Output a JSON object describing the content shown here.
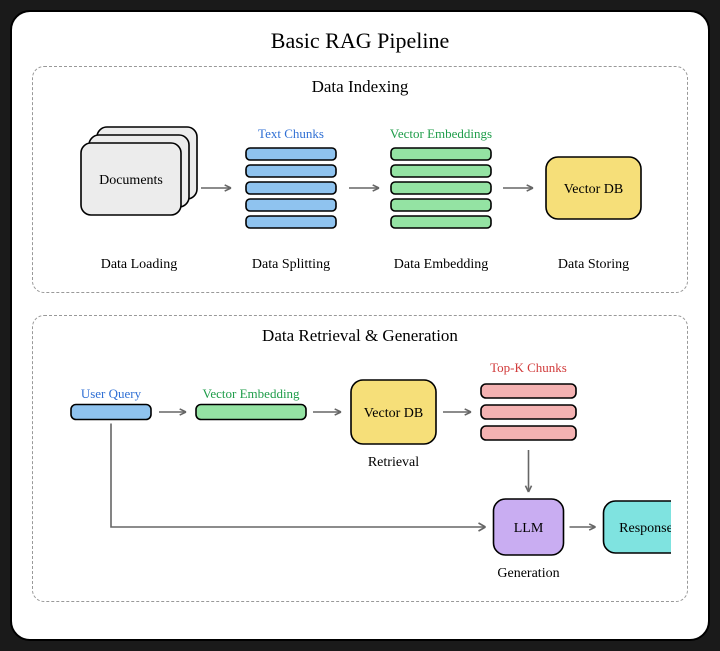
{
  "title": "Basic RAG Pipeline",
  "indexing": {
    "section_title": "Data Indexing",
    "documents": {
      "label": "Documents",
      "stage": "Data Loading",
      "fill": "#ececec",
      "stroke": "#000000",
      "count": 3
    },
    "chunks": {
      "header": "Text Chunks",
      "header_color": "#2f6fd4",
      "stage": "Data Splitting",
      "fill": "#8fc3ef",
      "stroke": "#000000",
      "count": 5
    },
    "embeddings": {
      "header": "Vector Embeddings",
      "header_color": "#1f9d4a",
      "stage": "Data Embedding",
      "fill": "#94e3a3",
      "stroke": "#000000",
      "count": 5
    },
    "vectordb": {
      "label": "Vector DB",
      "stage": "Data Storing",
      "fill": "#f6df79",
      "stroke": "#000000"
    }
  },
  "retrieval": {
    "section_title": "Data Retrieval & Generation",
    "user_query": {
      "header": "User Query",
      "header_color": "#2f6fd4",
      "fill": "#8fc3ef",
      "stroke": "#000000"
    },
    "embedding": {
      "header": "Vector Embedding",
      "header_color": "#1f9d4a",
      "fill": "#94e3a3",
      "stroke": "#000000"
    },
    "vectordb": {
      "label": "Vector DB",
      "stage": "Retrieval",
      "fill": "#f6df79",
      "stroke": "#000000"
    },
    "topk": {
      "header": "Top-K Chunks",
      "header_color": "#d13a3a",
      "fill": "#f4b2b2",
      "stroke": "#000000",
      "count": 3
    },
    "llm": {
      "label": "LLM",
      "stage": "Generation",
      "fill": "#c9adf2",
      "stroke": "#000000"
    },
    "response": {
      "label": "Response",
      "fill": "#7fe3e0",
      "stroke": "#000000"
    }
  },
  "arrow": {
    "stroke": "#666666",
    "width": 1.6
  },
  "text": {
    "color": "#000000",
    "header_fontsize": 13,
    "stage_fontsize": 14,
    "node_fontsize": 14
  },
  "canvas": {
    "bg": "#ffffff",
    "border": "#000000",
    "dash": "#999999"
  }
}
